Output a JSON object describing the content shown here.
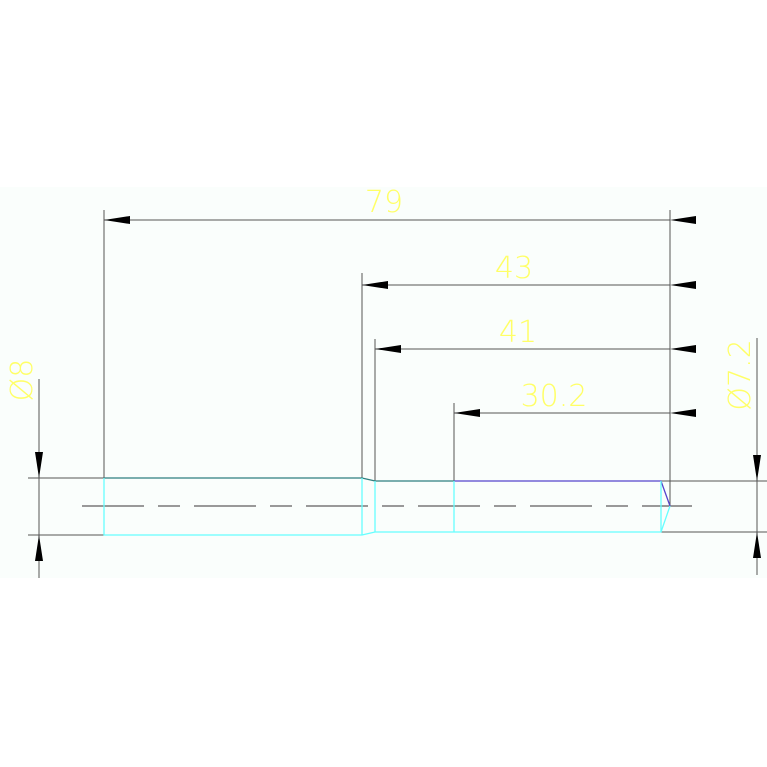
{
  "colors": {
    "background": "#ffffff",
    "drawing_area": "#fafefc",
    "dimension_line": "#555555",
    "dimension_text": "#ffff66",
    "outline_top": "#2f7f7f",
    "outline_bottom": "#66ffff",
    "outline_accent": "#5544cc",
    "centerline": "#999999"
  },
  "dimensions": {
    "overall_length": "79",
    "length_43": "43",
    "length_41": "41",
    "length_30_2": "30.2",
    "diameter_left": "Ø8",
    "diameter_right": "Ø7.2"
  }
}
